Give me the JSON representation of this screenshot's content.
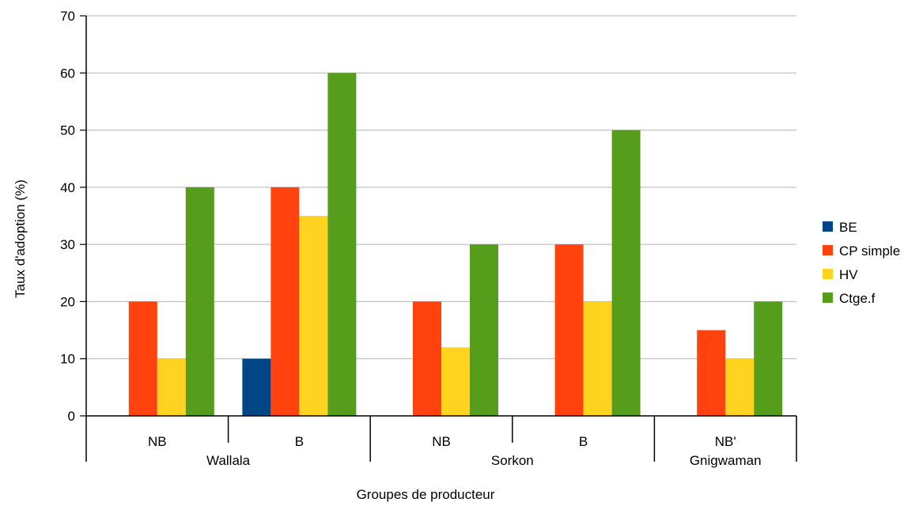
{
  "chart_data": {
    "type": "bar",
    "xlabel": "Groupes de producteur",
    "ylabel": "Taux d'adoption (%)",
    "ylim": [
      0,
      70
    ],
    "yticks": [
      0,
      10,
      20,
      30,
      40,
      50,
      60,
      70
    ],
    "grid": true,
    "legend_position": "right",
    "categories": [
      "NB",
      "B",
      "NB",
      "B",
      "NB'"
    ],
    "groups": [
      {
        "label": "Wallala",
        "span": [
          0,
          1
        ]
      },
      {
        "label": "Sorkon",
        "span": [
          2,
          3
        ]
      },
      {
        "label": "Gnigwaman",
        "span": [
          4,
          4
        ]
      }
    ],
    "series": [
      {
        "name": "BE",
        "color": "#004586",
        "values": [
          0,
          10,
          0,
          0,
          0
        ]
      },
      {
        "name": "CP simple",
        "color": "#ff420e",
        "values": [
          20,
          40,
          20,
          30,
          15
        ]
      },
      {
        "name": "HV",
        "color": "#ffd320",
        "values": [
          10,
          35,
          12,
          20,
          10
        ]
      },
      {
        "name": "Ctge.f",
        "color": "#579d1c",
        "values": [
          40,
          60,
          30,
          50,
          20
        ]
      }
    ]
  }
}
